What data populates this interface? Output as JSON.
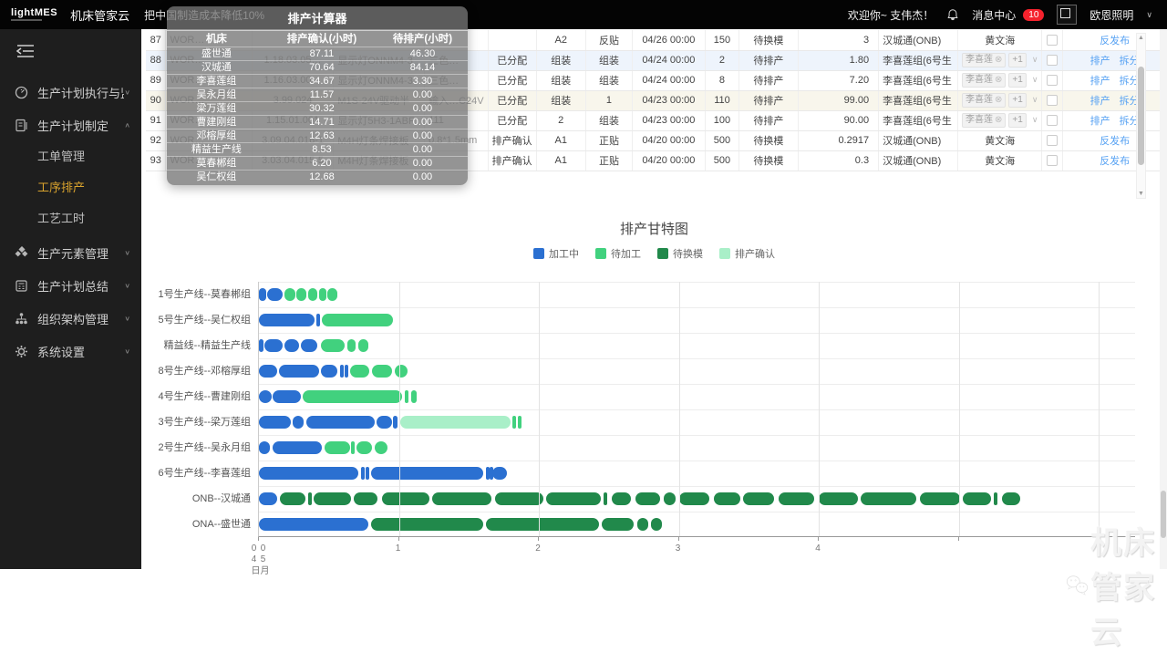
{
  "topbar": {
    "logo": "lightMES",
    "brand": "机床管家云",
    "slogan": "把中国制造成本降低10%",
    "welcome": "欢迎你~ 支伟杰！",
    "message_center": "消息中心",
    "message_badge": "10",
    "company": "欧恩照明"
  },
  "sidebar": {
    "items": [
      {
        "icon": "monitor-icon",
        "label": "生产计划执行与监控",
        "chevron": "down"
      },
      {
        "icon": "document-icon",
        "label": "生产计划制定",
        "chevron": "up",
        "expanded": true,
        "children": [
          {
            "label": "工单管理",
            "active": false
          },
          {
            "label": "工序排产",
            "active": true
          },
          {
            "label": "工艺工时",
            "active": false
          }
        ]
      },
      {
        "icon": "diamond-icon",
        "label": "生产元素管理",
        "chevron": "down"
      },
      {
        "icon": "report-icon",
        "label": "生产计划总结",
        "chevron": "down"
      },
      {
        "icon": "org-icon",
        "label": "组织架构管理",
        "chevron": "down"
      },
      {
        "icon": "gear-icon",
        "label": "系统设置",
        "chevron": "down"
      }
    ]
  },
  "work_table": {
    "rows": [
      {
        "num": "87",
        "order": "WOR…",
        "code": "",
        "name": "",
        "spec": "",
        "status": "",
        "proc1": "A2",
        "proc2": "反贴",
        "date": "04/26 00:00",
        "qty": "150",
        "state": "待换模",
        "hours": "3",
        "machine": "汉城通(ONB)",
        "person": {
          "type": "text",
          "value": "黄文海"
        },
        "actions": [
          "反发布"
        ],
        "shade": null
      },
      {
        "num": "88",
        "order": "WOR…",
        "code": "1.18.03.05…",
        "name": "显示灯ONNM4-3",
        "spec": "三色…",
        "status": "已分配",
        "proc1": "组装",
        "proc2": "组装",
        "date": "04/24 00:00",
        "qty": "2",
        "state": "待排产",
        "hours": "1.80",
        "machine": "李喜莲组(6号生",
        "person": {
          "type": "tags",
          "tags": [
            "李喜莲"
          ],
          "more": "+1"
        },
        "actions": [
          "排产",
          "拆分"
        ],
        "shade": "blue"
      },
      {
        "num": "89",
        "order": "WOR…",
        "code": "1.16.03.00…",
        "name": "显示灯ONNM4-3",
        "spec": "三色…",
        "status": "已分配",
        "proc1": "组装",
        "proc2": "组装",
        "date": "04/24 00:00",
        "qty": "8",
        "state": "待排产",
        "hours": "7.20",
        "machine": "李喜莲组(6号生",
        "person": {
          "type": "tags",
          "tags": [
            "李喜莲"
          ],
          "more": "+1"
        },
        "actions": [
          "排产",
          "拆分"
        ],
        "shade": null
      },
      {
        "num": "90",
        "order": "WOR…",
        "code": "3.99.024",
        "name": "M1S-24V驱动半",
        "spec": "输入…C24V",
        "status": "已分配",
        "proc1": "组装",
        "proc2": "1",
        "date": "04/23 00:00",
        "qty": "110",
        "state": "待排产",
        "hours": "99.00",
        "machine": "李喜莲组(6号生",
        "person": {
          "type": "tags",
          "tags": [
            "李喜莲"
          ],
          "more": "+1"
        },
        "actions": [
          "排产",
          "拆分"
        ],
        "shade": "warm"
      },
      {
        "num": "91",
        "order": "WOR…",
        "code": "1.15.01.001",
        "name": "显示灯5H3-1ABF",
        "spec": "111",
        "status": "已分配",
        "proc1": "2",
        "proc2": "组装",
        "date": "04/23 00:00",
        "qty": "100",
        "state": "待排产",
        "hours": "90.00",
        "machine": "李喜莲组(6号生",
        "person": {
          "type": "tags",
          "tags": [
            "李喜莲"
          ],
          "more": "+1"
        },
        "actions": [
          "排产",
          "拆分"
        ],
        "shade": null
      },
      {
        "num": "92",
        "order": "WOR…",
        "code": "3.09.04.016-1",
        "name": "M4H灯条焊接板",
        "spec": "0.8*1.5mm",
        "status": "排产确认",
        "proc1": "A1",
        "proc2": "正贴",
        "date": "04/20 00:00",
        "qty": "500",
        "state": "待换模",
        "hours": "0.2917",
        "machine": "汉城通(ONB)",
        "person": {
          "type": "text",
          "value": "黄文海"
        },
        "actions": [
          "反发布"
        ],
        "shade": null
      },
      {
        "num": "93",
        "order": "WOR…",
        "code": "3.03.04.015-5",
        "name": "M4H灯条焊接板",
        "spec": "",
        "status": "排产确认",
        "proc1": "A1",
        "proc2": "正贴",
        "date": "04/20 00:00",
        "qty": "500",
        "state": "待换模",
        "hours": "0.3",
        "machine": "汉城通(ONB)",
        "person": {
          "type": "text",
          "value": "黄文海"
        },
        "actions": [
          "反发布"
        ],
        "shade": null
      }
    ]
  },
  "modal": {
    "title": "排产计算器",
    "columns": [
      "机床",
      "排产确认(小时)",
      "待排产(小时)"
    ],
    "rows": [
      {
        "machine": "盛世通",
        "confirm": "87.11",
        "pending": "46.30"
      },
      {
        "machine": "汉城通",
        "confirm": "70.64",
        "pending": "84.14"
      },
      {
        "machine": "李喜莲组",
        "confirm": "34.67",
        "pending": "3.30"
      },
      {
        "machine": "吴永月组",
        "confirm": "11.57",
        "pending": "0.00"
      },
      {
        "machine": "梁万莲组",
        "confirm": "30.32",
        "pending": "0.00"
      },
      {
        "machine": "曹建刚组",
        "confirm": "14.71",
        "pending": "0.00"
      },
      {
        "machine": "邓榕厚组",
        "confirm": "12.63",
        "pending": "0.00"
      },
      {
        "machine": "精益生产线",
        "confirm": "8.53",
        "pending": "0.00"
      },
      {
        "machine": "莫春郴组",
        "confirm": "6.20",
        "pending": "0.00"
      },
      {
        "machine": "吴仁权组",
        "confirm": "12.68",
        "pending": "0.00"
      }
    ]
  },
  "chart_data": {
    "type": "gantt",
    "title": "排产甘特图",
    "legend": [
      {
        "key": "p",
        "label": "加工中",
        "color": "#2b70d1"
      },
      {
        "key": "w",
        "label": "待加工",
        "color": "#41d17e"
      },
      {
        "key": "m",
        "label": "待换模",
        "color": "#21894b"
      },
      {
        "key": "c",
        "label": "排产确认",
        "color": "#a9efc8"
      }
    ],
    "x_axis": {
      "unit": "day",
      "start_date_label": "05月04日",
      "ticks": [
        0,
        1,
        2,
        3,
        4
      ],
      "gridlines": [
        1,
        2,
        3,
        4,
        5,
        6
      ],
      "max": 6.25
    },
    "rows": [
      {
        "label": "1号生产线--莫春郴组",
        "segments": [
          [
            "p",
            0,
            0.05
          ],
          [
            "p",
            0.06,
            0.17
          ],
          [
            "w",
            0.18,
            0.26
          ],
          [
            "w",
            0.27,
            0.34
          ],
          [
            "w",
            0.35,
            0.42
          ],
          [
            "w",
            0.43,
            0.48
          ],
          [
            "w",
            0.49,
            0.56
          ]
        ]
      },
      {
        "label": "5号生产线--吴仁权组",
        "segments": [
          [
            "p",
            0,
            0.4
          ],
          [
            "p",
            0.41,
            0.43
          ],
          [
            "w",
            0.45,
            0.96
          ]
        ]
      },
      {
        "label": "精益线--精益生产线",
        "segments": [
          [
            "p",
            0,
            0.03
          ],
          [
            "p",
            0.04,
            0.17
          ],
          [
            "p",
            0.18,
            0.29
          ],
          [
            "p",
            0.3,
            0.42
          ],
          [
            "w",
            0.44,
            0.61
          ],
          [
            "w",
            0.63,
            0.69
          ],
          [
            "w",
            0.71,
            0.78
          ]
        ]
      },
      {
        "label": "8号生产线--邓榕厚组",
        "segments": [
          [
            "p",
            0,
            0.13
          ],
          [
            "p",
            0.14,
            0.43
          ],
          [
            "p",
            0.44,
            0.56
          ],
          [
            "p",
            0.58,
            0.6
          ],
          [
            "p",
            0.61,
            0.63
          ],
          [
            "w",
            0.65,
            0.79
          ],
          [
            "w",
            0.81,
            0.95
          ],
          [
            "w",
            0.97,
            1.06
          ]
        ]
      },
      {
        "label": "4号生产线--曹建刚组",
        "segments": [
          [
            "p",
            0,
            0.09
          ],
          [
            "p",
            0.1,
            0.3
          ],
          [
            "w",
            0.31,
            1.02
          ],
          [
            "w",
            1.04,
            1.07
          ],
          [
            "w",
            1.09,
            1.13
          ]
        ]
      },
      {
        "label": "3号生产线--梁万莲组",
        "segments": [
          [
            "p",
            0,
            0.23
          ],
          [
            "p",
            0.24,
            0.32
          ],
          [
            "p",
            0.34,
            0.83
          ],
          [
            "p",
            0.84,
            0.95
          ],
          [
            "p",
            0.96,
            0.99
          ],
          [
            "c",
            1.01,
            1.8
          ],
          [
            "w",
            1.81,
            1.83
          ],
          [
            "w",
            1.85,
            1.87
          ]
        ]
      },
      {
        "label": "2号生产线--吴永月组",
        "segments": [
          [
            "p",
            0,
            0.08
          ],
          [
            "p",
            0.1,
            0.45
          ],
          [
            "w",
            0.47,
            0.65
          ],
          [
            "w",
            0.66,
            0.68
          ],
          [
            "w",
            0.7,
            0.81
          ],
          [
            "w",
            0.83,
            0.92
          ]
        ]
      },
      {
        "label": "6号生产线--李喜莲组",
        "segments": [
          [
            "p",
            0,
            0.71
          ],
          [
            "p",
            0.73,
            0.75
          ],
          [
            "p",
            0.76,
            0.78
          ],
          [
            "p",
            0.8,
            1.6
          ],
          [
            "p",
            1.62,
            1.63
          ],
          [
            "p",
            1.65,
            1.66
          ],
          [
            "p",
            1.67,
            1.77
          ]
        ]
      },
      {
        "label": "ONB--汉城通",
        "segments": [
          [
            "p",
            0,
            0.13
          ],
          [
            "m",
            0.15,
            0.33
          ],
          [
            "m",
            0.35,
            0.37
          ],
          [
            "m",
            0.39,
            0.66
          ],
          [
            "m",
            0.68,
            0.85
          ],
          [
            "m",
            0.88,
            1.22
          ],
          [
            "m",
            1.24,
            1.66
          ],
          [
            "m",
            1.69,
            2.03
          ],
          [
            "m",
            2.05,
            2.44
          ],
          [
            "m",
            2.46,
            2.49
          ],
          [
            "m",
            2.52,
            2.66
          ],
          [
            "m",
            2.69,
            2.87
          ],
          [
            "m",
            2.89,
            2.98
          ],
          [
            "m",
            3.0,
            3.22
          ],
          [
            "m",
            3.25,
            3.44
          ],
          [
            "m",
            3.46,
            3.68
          ],
          [
            "m",
            3.71,
            3.97
          ],
          [
            "m",
            4.0,
            4.28
          ],
          [
            "m",
            4.3,
            4.7
          ],
          [
            "m",
            4.72,
            5.01
          ],
          [
            "m",
            5.03,
            5.23
          ],
          [
            "m",
            5.25,
            5.28
          ],
          [
            "m",
            5.31,
            5.44
          ]
        ]
      },
      {
        "label": "ONA--盛世通",
        "segments": [
          [
            "p",
            0,
            0.78
          ],
          [
            "m",
            0.8,
            1.6
          ],
          [
            "m",
            1.62,
            2.43
          ],
          [
            "m",
            2.45,
            2.68
          ],
          [
            "m",
            2.7,
            2.78
          ],
          [
            "m",
            2.8,
            2.88
          ]
        ]
      }
    ]
  },
  "watermark": {
    "text": "机床管家云"
  }
}
